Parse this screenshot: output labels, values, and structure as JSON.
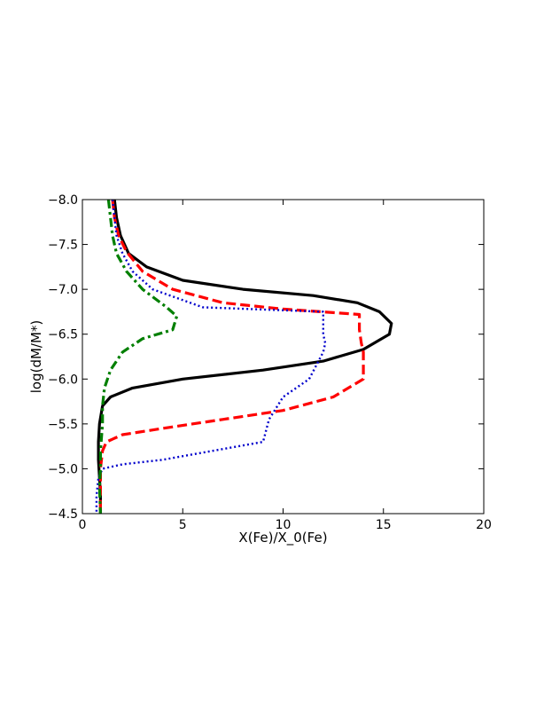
{
  "chart_data": {
    "type": "line",
    "title": "",
    "xlabel": "X(Fe)/X_0(Fe)",
    "ylabel": "log(dM/M*)",
    "xlim": [
      0,
      20
    ],
    "ylim": [
      -8.0,
      -4.5
    ],
    "y_inverted": true,
    "grid": false,
    "legend": "none",
    "xticks": [
      0,
      5,
      10,
      15,
      20
    ],
    "xtick_labels": [
      "0",
      "5",
      "10",
      "15",
      "20"
    ],
    "yticks": [
      -8.0,
      -7.5,
      -7.0,
      -6.5,
      -6.0,
      -5.5,
      -5.0,
      -4.5
    ],
    "ytick_labels": [
      "−8.0",
      "−7.5",
      "−7.0",
      "−6.5",
      "−6.0",
      "−5.5",
      "−5.0",
      "−4.5"
    ],
    "series": [
      {
        "color": "#000000",
        "style": "solid",
        "width": 3.2,
        "x": [
          1.6,
          1.7,
          1.9,
          2.3,
          3.2,
          5.0,
          8.0,
          11.5,
          13.7,
          14.8,
          15.4,
          15.3,
          14.0,
          12.0,
          9.0,
          5.0,
          2.5,
          1.4,
          1.0,
          0.85,
          0.8,
          0.8,
          0.85,
          0.9,
          0.9
        ],
        "y": [
          -8.0,
          -7.8,
          -7.6,
          -7.4,
          -7.25,
          -7.1,
          -7.0,
          -6.93,
          -6.85,
          -6.75,
          -6.62,
          -6.5,
          -6.33,
          -6.2,
          -6.1,
          -6.0,
          -5.9,
          -5.8,
          -5.7,
          -5.5,
          -5.3,
          -5.1,
          -4.9,
          -4.7,
          -4.5
        ]
      },
      {
        "color": "#ff0000",
        "style": "dashed",
        "width": 3.2,
        "x": [
          1.5,
          1.6,
          1.8,
          2.2,
          3.0,
          4.5,
          7.0,
          10.0,
          13.8,
          13.8,
          13.9,
          14.0,
          14.0,
          12.5,
          10.0,
          7.0,
          4.0,
          2.0,
          1.2,
          1.0,
          0.9,
          0.9,
          0.9,
          0.9
        ],
        "y": [
          -8.0,
          -7.8,
          -7.6,
          -7.42,
          -7.2,
          -7.0,
          -6.85,
          -6.78,
          -6.72,
          -6.55,
          -6.4,
          -6.3,
          -6.0,
          -5.8,
          -5.65,
          -5.55,
          -5.45,
          -5.38,
          -5.3,
          -5.2,
          -5.0,
          -4.8,
          -4.6,
          -4.5
        ]
      },
      {
        "color": "#0000cc",
        "style": "dotted",
        "width": 2.4,
        "x": [
          1.5,
          1.6,
          1.7,
          2.0,
          2.5,
          3.5,
          6.0,
          12.0,
          12.0,
          12.1,
          12.0,
          11.3,
          10.0,
          9.3,
          9.0,
          6.5,
          4.0,
          2.0,
          1.0,
          0.8,
          0.7,
          0.7
        ],
        "y": [
          -8.0,
          -7.8,
          -7.6,
          -7.4,
          -7.2,
          -7.0,
          -6.8,
          -6.75,
          -6.5,
          -6.4,
          -6.3,
          -6.0,
          -5.8,
          -5.55,
          -5.3,
          -5.2,
          -5.1,
          -5.05,
          -5.0,
          -4.9,
          -4.7,
          -4.5
        ]
      },
      {
        "color": "#007f00",
        "style": "dashdot",
        "width": 3.2,
        "x": [
          1.3,
          1.4,
          1.5,
          1.7,
          2.2,
          3.0,
          4.2,
          4.7,
          4.5,
          3.0,
          2.0,
          1.4,
          1.1,
          1.0,
          1.0,
          0.9,
          0.9,
          0.85,
          0.9
        ],
        "y": [
          -8.0,
          -7.8,
          -7.6,
          -7.4,
          -7.2,
          -7.0,
          -6.8,
          -6.7,
          -6.55,
          -6.45,
          -6.3,
          -6.1,
          -5.9,
          -5.7,
          -5.5,
          -5.2,
          -5.0,
          -4.8,
          -4.5
        ]
      }
    ]
  }
}
